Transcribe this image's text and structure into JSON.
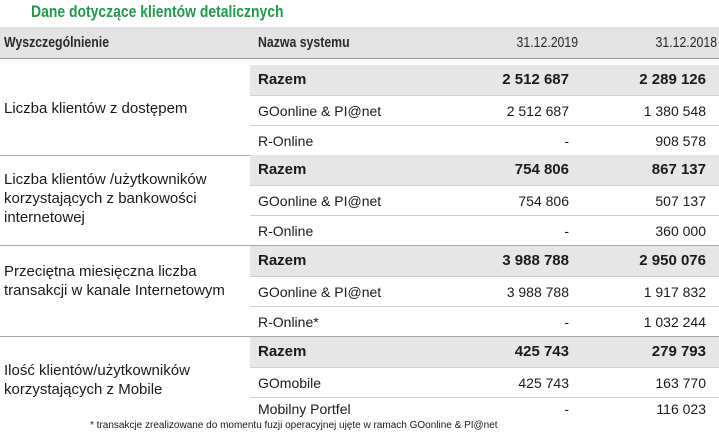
{
  "title": "Dane dotyczące klientów detalicznych",
  "header": {
    "col1": "Wyszczególnienie",
    "col2": "Nazwa systemu",
    "col3": "31.12.2019",
    "col4": "31.12.2018"
  },
  "groups": [
    {
      "label": "Liczba klientów z dostępem",
      "rows": [
        {
          "system": "Razem",
          "v2019": "2 512 687",
          "v2018": "2 289 126"
        },
        {
          "system": "GOonline & PI@net",
          "v2019": "2 512 687",
          "v2018": "1 380 548"
        },
        {
          "system": "R-Online",
          "v2019": "-",
          "v2018": "908 578"
        }
      ]
    },
    {
      "label": "Liczba klientów /użytkowników korzystających z bankowości internetowej",
      "rows": [
        {
          "system": "Razem",
          "v2019": "754 806",
          "v2018": "867 137"
        },
        {
          "system": "GOonline & PI@net",
          "v2019": "754 806",
          "v2018": "507 137"
        },
        {
          "system": "R-Online",
          "v2019": "-",
          "v2018": "360 000"
        }
      ]
    },
    {
      "label": "Przeciętna miesięczna liczba transakcji w kanale Internetowym",
      "rows": [
        {
          "system": "Razem",
          "v2019": "3 988 788",
          "v2018": "2 950 076"
        },
        {
          "system": "GOonline & PI@net",
          "v2019": "3 988 788",
          "v2018": "1 917 832"
        },
        {
          "system": "R-Online*",
          "v2019": "-",
          "v2018": "1 032 244"
        }
      ]
    },
    {
      "label": "Ilość klientów/użytkowników korzystających z Mobile",
      "rows": [
        {
          "system": "Razem",
          "v2019": "425 743",
          "v2018": "279 793"
        },
        {
          "system": "GOmobile",
          "v2019": "425 743",
          "v2018": "163 770"
        },
        {
          "system": "Mobilny Portfel",
          "v2019": "-",
          "v2018": "116 023"
        }
      ]
    }
  ],
  "footnote": "* transakcje zrealizowane do momentu fuzji operacyjnej ujęte w ramach GOonline & PI@net"
}
